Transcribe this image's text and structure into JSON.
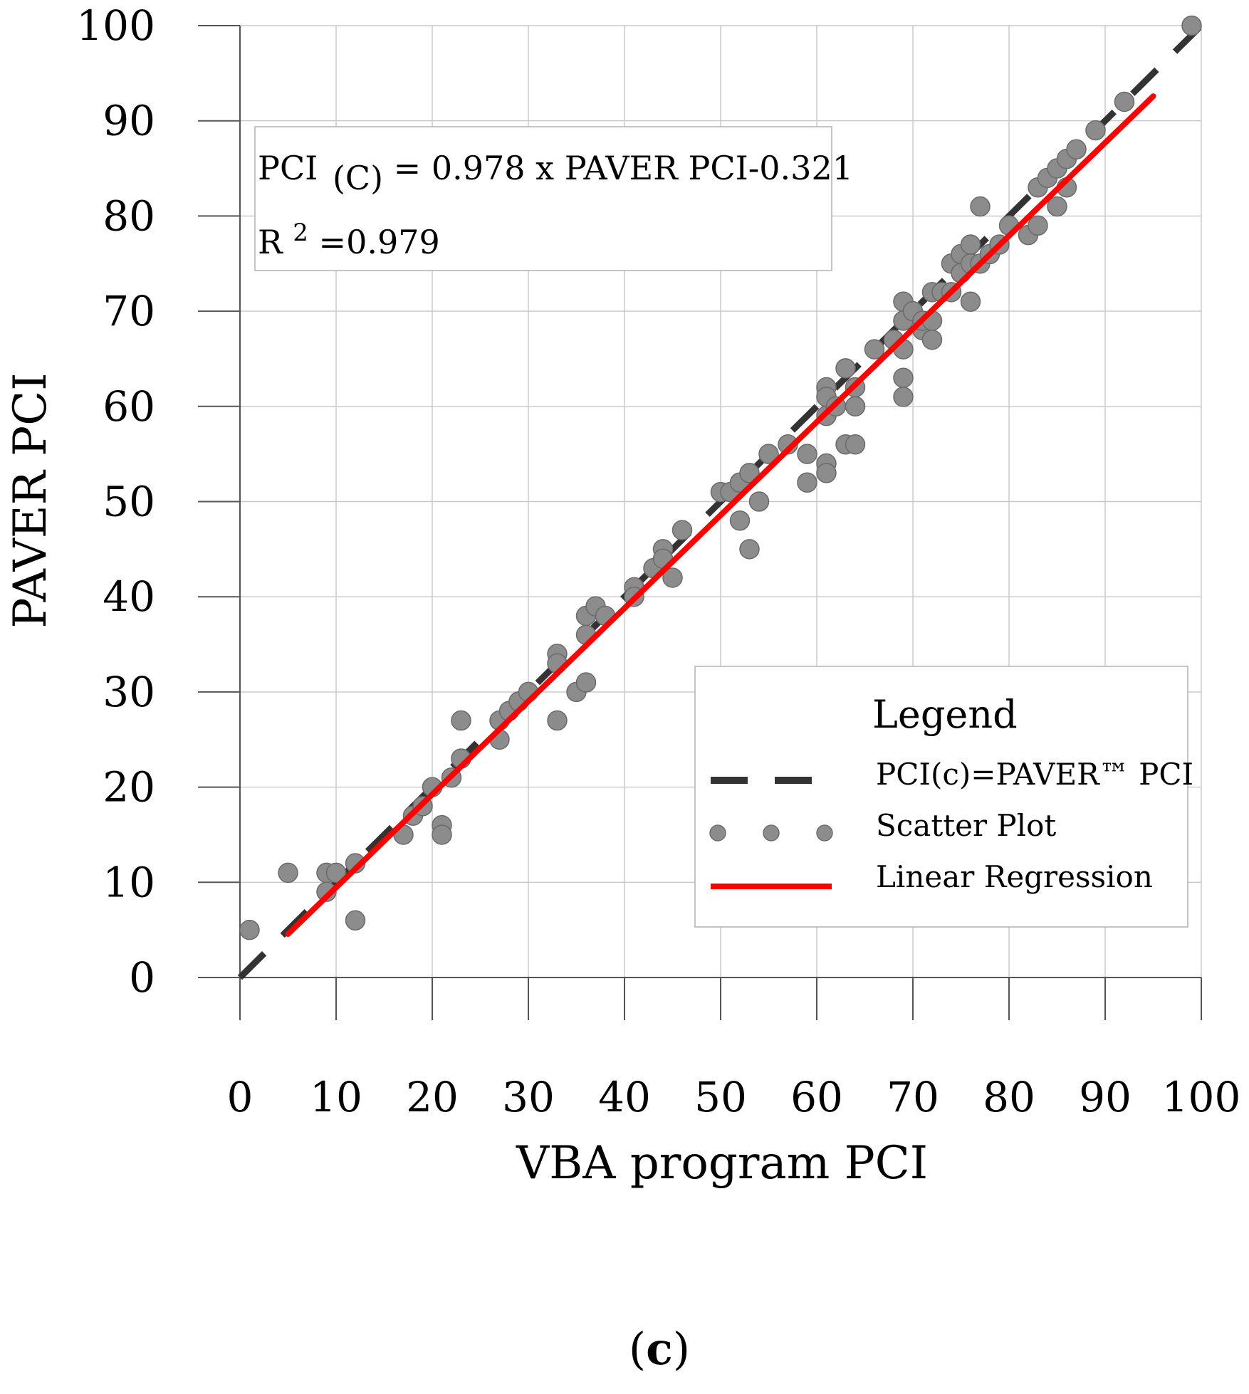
{
  "chart_data": {
    "type": "scatter",
    "title": "",
    "xlabel": "VBA program PCI",
    "ylabel": "PAVER PCI",
    "xlim": [
      0,
      100
    ],
    "ylim": [
      0,
      100
    ],
    "grid": true,
    "x_ticks": [
      "0",
      "10",
      "20",
      "30",
      "40",
      "50",
      "60",
      "70",
      "80",
      "90",
      "100"
    ],
    "y_ticks": [
      "0",
      "10",
      "20",
      "30",
      "40",
      "50",
      "60",
      "70",
      "80",
      "90",
      "100"
    ],
    "series": [
      {
        "name": "Scatter Plot",
        "kind": "scatter",
        "color": "#8c8c8c",
        "points": [
          [
            1,
            5
          ],
          [
            5,
            11
          ],
          [
            9,
            11
          ],
          [
            9,
            9
          ],
          [
            10,
            11
          ],
          [
            12,
            12
          ],
          [
            12,
            6
          ],
          [
            17,
            15
          ],
          [
            18,
            17
          ],
          [
            19,
            18
          ],
          [
            20,
            20
          ],
          [
            21,
            16
          ],
          [
            21,
            15
          ],
          [
            22,
            21
          ],
          [
            23,
            23
          ],
          [
            23,
            27
          ],
          [
            27,
            27
          ],
          [
            27,
            25
          ],
          [
            28,
            28
          ],
          [
            29,
            29
          ],
          [
            30,
            30
          ],
          [
            33,
            34
          ],
          [
            33,
            33
          ],
          [
            33,
            27
          ],
          [
            35,
            30
          ],
          [
            36,
            31
          ],
          [
            36,
            36
          ],
          [
            36,
            38
          ],
          [
            37,
            39
          ],
          [
            38,
            38
          ],
          [
            41,
            41
          ],
          [
            41,
            40
          ],
          [
            43,
            43
          ],
          [
            44,
            45
          ],
          [
            44,
            44
          ],
          [
            45,
            42
          ],
          [
            46,
            47
          ],
          [
            50,
            51
          ],
          [
            51,
            51
          ],
          [
            52,
            52
          ],
          [
            52,
            48
          ],
          [
            53,
            53
          ],
          [
            53,
            45
          ],
          [
            54,
            50
          ],
          [
            55,
            55
          ],
          [
            57,
            56
          ],
          [
            59,
            55
          ],
          [
            59,
            52
          ],
          [
            61,
            62
          ],
          [
            61,
            61
          ],
          [
            61,
            59
          ],
          [
            61,
            54
          ],
          [
            61,
            53
          ],
          [
            62,
            60
          ],
          [
            63,
            64
          ],
          [
            63,
            56
          ],
          [
            64,
            62
          ],
          [
            64,
            60
          ],
          [
            64,
            56
          ],
          [
            66,
            66
          ],
          [
            68,
            67
          ],
          [
            69,
            71
          ],
          [
            69,
            69
          ],
          [
            69,
            66
          ],
          [
            69,
            63
          ],
          [
            69,
            61
          ],
          [
            70,
            70
          ],
          [
            71,
            68
          ],
          [
            71,
            69
          ],
          [
            72,
            72
          ],
          [
            72,
            69
          ],
          [
            72,
            67
          ],
          [
            73,
            72
          ],
          [
            74,
            75
          ],
          [
            74,
            72
          ],
          [
            75,
            76
          ],
          [
            75,
            74
          ],
          [
            76,
            77
          ],
          [
            76,
            75
          ],
          [
            76,
            71
          ],
          [
            77,
            81
          ],
          [
            77,
            75
          ],
          [
            78,
            76
          ],
          [
            79,
            77
          ],
          [
            80,
            79
          ],
          [
            82,
            78
          ],
          [
            83,
            83
          ],
          [
            83,
            79
          ],
          [
            84,
            84
          ],
          [
            85,
            85
          ],
          [
            85,
            81
          ],
          [
            86,
            86
          ],
          [
            86,
            83
          ],
          [
            87,
            87
          ],
          [
            89,
            89
          ],
          [
            92,
            92
          ],
          [
            99,
            100
          ]
        ]
      },
      {
        "name": "PCI(c)=PAVER™ PCI",
        "kind": "line",
        "style": "dashed",
        "color": "#333333",
        "x": [
          0,
          100
        ],
        "y": [
          0,
          100
        ]
      },
      {
        "name": "Linear Regression",
        "kind": "line",
        "style": "solid",
        "color": "#ff0000",
        "x": [
          5,
          95
        ],
        "y": [
          4.569,
          92.589
        ]
      }
    ],
    "annotation": {
      "equation_prefix": "PCI",
      "equation_subscript": "(C)",
      "equation_rest": " = 0.978 x PAVER PCI-0.321",
      "r2_prefix": "R",
      "r2_superscript": "2",
      "r2_rest": "=0.979"
    },
    "legend": {
      "title": "Legend",
      "position": "bottom-right",
      "entries": [
        "PCI(c)=PAVER™ PCI",
        "Scatter Plot",
        "Linear Regression"
      ]
    },
    "panel_label_open": "(",
    "panel_label_letter": "c",
    "panel_label_close": ")"
  }
}
